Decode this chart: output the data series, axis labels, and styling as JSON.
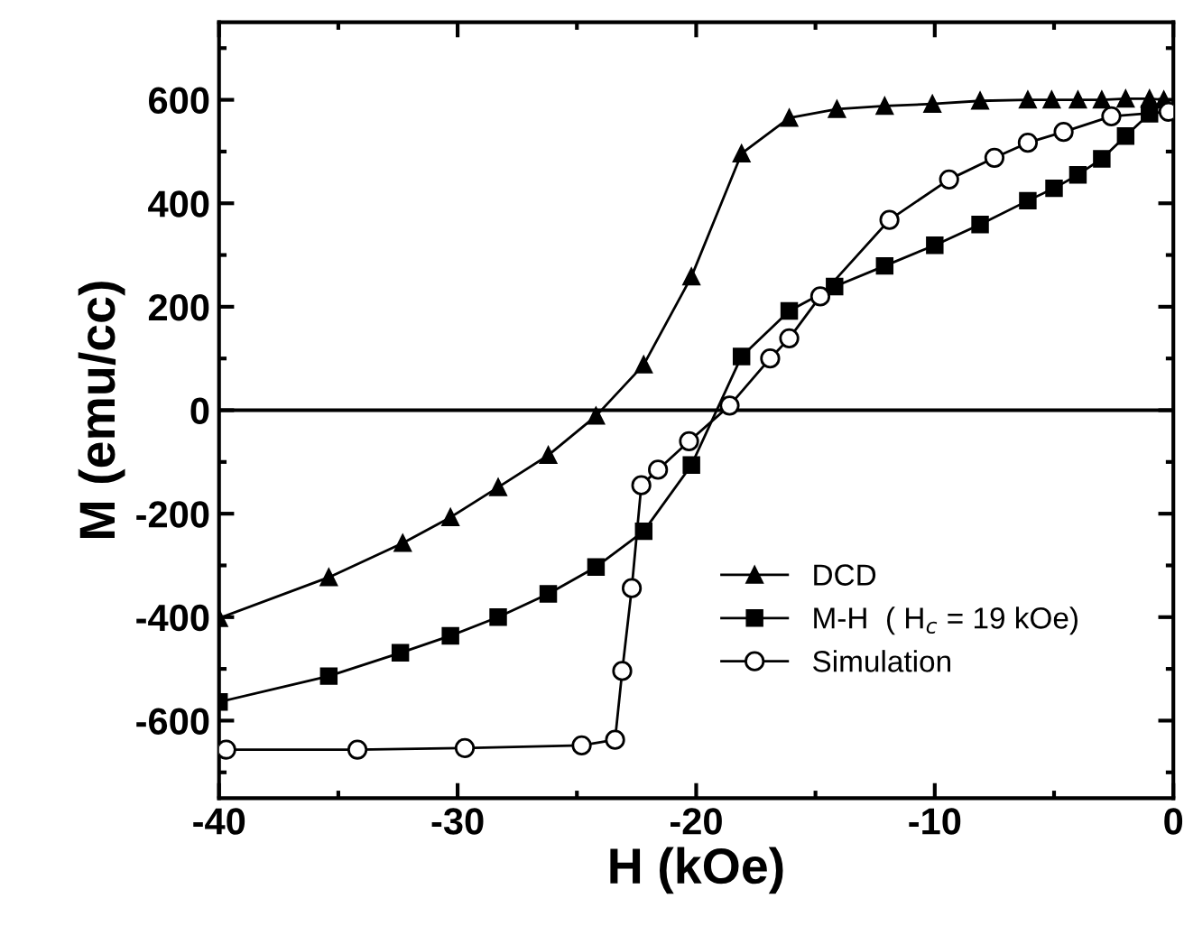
{
  "chart_data": {
    "type": "line",
    "xlabel": "H (kOe)",
    "ylabel": "M (emu/cc)",
    "xlim": [
      -40,
      0
    ],
    "xticks": [
      -40,
      -30,
      -20,
      -10,
      0
    ],
    "ylim": [
      -750,
      750
    ],
    "yticks": [
      -600,
      -400,
      -200,
      0,
      200,
      400,
      600
    ],
    "grid": false,
    "legend": "bottom right",
    "line_style": "solid",
    "ref_lines": [
      {
        "axis": "y",
        "value": 0,
        "color": "#000000"
      }
    ],
    "series": [
      {
        "name": "DCD",
        "color": "#000000",
        "marker": "triangle",
        "x": [
          -40,
          -35.4,
          -32.3,
          -30.3,
          -28.3,
          -26.2,
          -24.2,
          -22.2,
          -20.2,
          -18.1,
          -16.1,
          -14.1,
          -12.1,
          -10.1,
          -8.1,
          -6.1,
          -5.1,
          -4.0,
          -3.0,
          -2.0,
          -1.0,
          -0.4
        ],
        "values": [
          -402,
          -323,
          -257,
          -207,
          -149,
          -87,
          -11,
          88,
          258,
          496,
          565,
          582,
          588,
          592,
          598,
          600,
          600,
          600,
          600,
          602,
          602,
          600
        ]
      },
      {
        "name": "M-H  ( H$_{c}$ = 19 kOe)",
        "color": "#000000",
        "marker": "square",
        "x": [
          -40,
          -35.4,
          -32.4,
          -30.3,
          -28.3,
          -26.2,
          -24.2,
          -22.2,
          -20.2,
          -18.1,
          -16.1,
          -14.2,
          -12.1,
          -10.0,
          -8.1,
          -6.1,
          -5.0,
          -4.0,
          -3.0,
          -2.0,
          -1.0
        ],
        "values": [
          -564,
          -514,
          -469,
          -436,
          -400,
          -355,
          -303,
          -234,
          -106,
          104,
          192,
          239,
          279,
          319,
          359,
          405,
          429,
          455,
          486,
          530,
          573
        ]
      },
      {
        "name": "Simulation",
        "color": "#000000",
        "marker": "circle",
        "x": [
          -39.7,
          -34.2,
          -29.7,
          -24.8,
          -23.4,
          -23.1,
          -22.7,
          -22.3,
          -21.6,
          -20.3,
          -18.6,
          -16.9,
          -16.1,
          -14.8,
          -11.9,
          -9.4,
          -7.5,
          -6.1,
          -4.6,
          -2.6,
          -0.2
        ],
        "values": [
          -656,
          -656,
          -653,
          -648,
          -637,
          -504,
          -344,
          -145,
          -115,
          -60,
          9,
          100,
          139,
          220,
          368,
          446,
          488,
          517,
          538,
          568,
          577
        ]
      }
    ]
  }
}
